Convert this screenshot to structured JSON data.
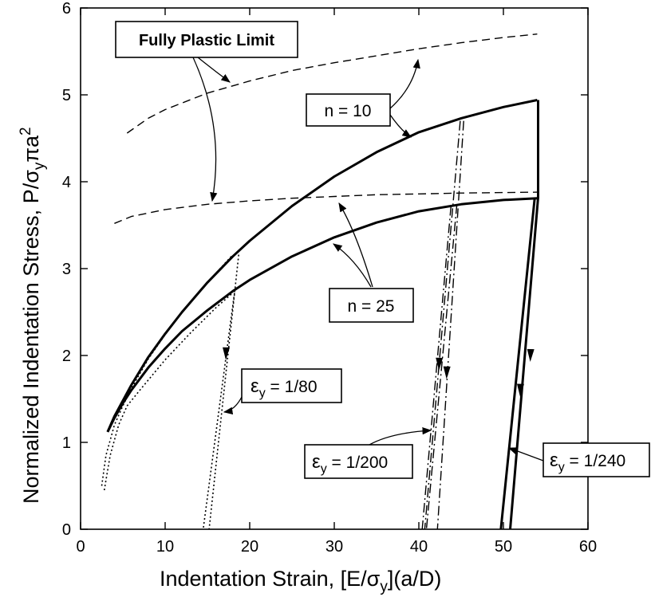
{
  "chart_data": {
    "type": "line",
    "title": "",
    "xlabel": "Indentation Strain,  [E/σ",
    "xlabel_sub": "y",
    "xlabel_tail": "](a/D)",
    "ylabel": "Normalized Indentation Stress,  P/σ",
    "ylabel_sub": "y",
    "ylabel_tail": "πa",
    "ylabel_sup": "2",
    "xlim": [
      0,
      60
    ],
    "ylim": [
      0,
      6
    ],
    "xticks": [
      "0",
      "10",
      "20",
      "30",
      "40",
      "50",
      "60"
    ],
    "yticks": [
      "0",
      "1",
      "2",
      "3",
      "4",
      "5",
      "6"
    ],
    "grid": false,
    "series": [
      {
        "style": "dashed",
        "width": 1.4,
        "x": [
          5.5,
          8,
          10,
          15,
          20,
          25,
          30,
          35,
          40,
          45,
          50,
          54
        ],
        "y": [
          4.56,
          4.73,
          4.83,
          5.02,
          5.16,
          5.28,
          5.37,
          5.45,
          5.53,
          5.6,
          5.66,
          5.7
        ]
      },
      {
        "style": "dashed",
        "width": 1.4,
        "x": [
          4,
          6,
          10,
          15,
          20,
          25,
          30,
          35,
          40,
          45,
          50,
          54
        ],
        "y": [
          3.52,
          3.6,
          3.68,
          3.74,
          3.78,
          3.81,
          3.83,
          3.85,
          3.86,
          3.87,
          3.875,
          3.88
        ]
      },
      {
        "style": "solid",
        "width": 3,
        "x": [
          3.2,
          4,
          5,
          6,
          8,
          10,
          12,
          15,
          18,
          20,
          25,
          30,
          35,
          40,
          45,
          50,
          54
        ],
        "y": [
          1.12,
          1.3,
          1.48,
          1.66,
          1.98,
          2.25,
          2.5,
          2.84,
          3.14,
          3.32,
          3.72,
          4.06,
          4.34,
          4.57,
          4.73,
          4.86,
          4.94
        ]
      },
      {
        "style": "solid",
        "width": 3,
        "x": [
          3.2,
          4,
          5,
          6,
          8,
          10,
          12,
          15,
          18,
          20,
          25,
          30,
          35,
          40,
          45,
          50,
          54
        ],
        "y": [
          1.12,
          1.28,
          1.45,
          1.6,
          1.86,
          2.08,
          2.28,
          2.52,
          2.74,
          2.87,
          3.14,
          3.36,
          3.53,
          3.66,
          3.74,
          3.79,
          3.81
        ]
      },
      {
        "style": "solid",
        "width": 3,
        "x": [
          54.1,
          54.1,
          50.8
        ],
        "y": [
          4.94,
          3.82,
          0
        ]
      },
      {
        "style": "solid",
        "width": 3,
        "x": [
          53.7,
          49.7
        ],
        "y": [
          3.81,
          0
        ]
      },
      {
        "style": "dotted",
        "width": 1.6,
        "x": [
          2.5,
          3,
          4,
          5,
          6,
          8,
          10,
          12,
          15,
          18
        ],
        "y": [
          0.5,
          0.85,
          1.2,
          1.42,
          1.62,
          1.96,
          2.24,
          2.5,
          2.84,
          3.16
        ]
      },
      {
        "style": "dotted",
        "width": 1.6,
        "x": [
          18.7,
          15.2
        ],
        "y": [
          3.16,
          0
        ]
      },
      {
        "style": "dotted",
        "width": 1.6,
        "x": [
          2.8,
          3.5,
          4.5,
          5.5,
          7,
          10,
          13,
          16,
          18
        ],
        "y": [
          0.45,
          0.85,
          1.2,
          1.42,
          1.6,
          1.95,
          2.26,
          2.55,
          2.72
        ]
      },
      {
        "style": "dotted",
        "width": 1.6,
        "x": [
          18.2,
          14.5
        ],
        "y": [
          2.72,
          0
        ]
      },
      {
        "style": "dashdot",
        "width": 1.4,
        "x": [
          44.9,
          40.7
        ],
        "y": [
          4.7,
          0
        ]
      },
      {
        "style": "dashdot",
        "width": 1.4,
        "x": [
          45.3,
          42.2
        ],
        "y": [
          4.7,
          0
        ]
      },
      {
        "style": "dashdot",
        "width": 1.4,
        "x": [
          44.5,
          40.9
        ],
        "y": [
          3.74,
          0
        ]
      },
      {
        "style": "dashdot",
        "width": 1.4,
        "x": [
          43.8,
          40.4
        ],
        "y": [
          3.72,
          0
        ]
      }
    ],
    "annotations": [
      {
        "text": "Fully Plastic Limit"
      },
      {
        "text": "n = 10"
      },
      {
        "text": "n = 25"
      },
      {
        "text": "ε",
        "sub": "y",
        "tail": " = 1/80"
      },
      {
        "text": "ε",
        "sub": "y",
        "tail": " = 1/200"
      },
      {
        "text": "ε",
        "sub": "y",
        "tail": " = 1/240"
      }
    ]
  }
}
